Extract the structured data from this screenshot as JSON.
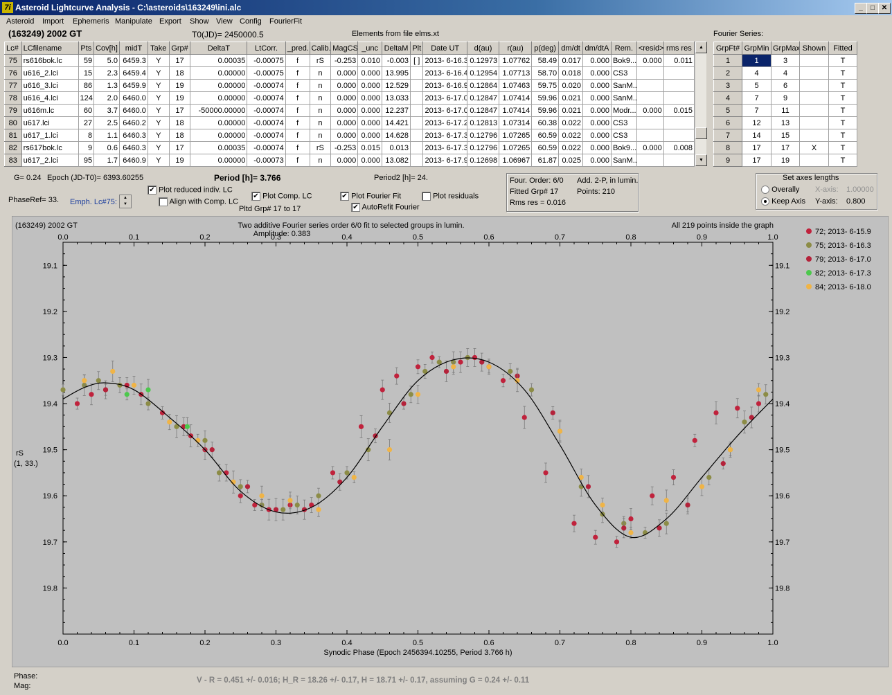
{
  "window": {
    "title": "Asteroid Lightcurve Analysis - C:\\asteroids\\163249\\ini.alc",
    "app_icon": "7i"
  },
  "menu": [
    "Asteroid",
    "Import",
    "Ephemeris",
    "Manipulate",
    "Export",
    "Show",
    "View",
    "Config",
    "FourierFit"
  ],
  "header": {
    "object": "(163249) 2002 GT",
    "t0": "T0(JD)= 2450000.5",
    "elements": "Elements from file elms.xt",
    "fourier_label": "Fourier Series:"
  },
  "lc_table": {
    "columns": [
      "Lc#",
      "LCfilename",
      "Pts",
      "Cov[h]",
      "midT",
      "Take",
      "Grp#",
      "DeltaT",
      "LtCorr.",
      "_pred.",
      "Calib.",
      "MagCS",
      "_unc",
      "DeltaM",
      "Plt",
      "Date UT",
      "d(au)",
      "r(au)",
      "p(deg)",
      "dm/dt",
      "dm/dtA",
      "Rem.",
      "<resid>",
      "rms res"
    ],
    "rows": [
      [
        "75",
        "rs616bok.lc",
        "59",
        "5.0",
        "6459.3",
        "Y",
        "17",
        "0.00035",
        "-0.00075",
        "f",
        "rS",
        "-0.253",
        "0.010",
        "-0.003",
        "[ ]",
        "2013- 6-16.3",
        "0.12973",
        "1.07762",
        "58.49",
        "0.017",
        "0.000",
        "Bok9...",
        "0.000",
        "0.011"
      ],
      [
        "76",
        "u616_2.lci",
        "15",
        "2.3",
        "6459.4",
        "Y",
        "18",
        "0.00000",
        "-0.00075",
        "f",
        "n",
        "0.000",
        "0.000",
        "13.995",
        "",
        "2013- 6-16.4",
        "0.12954",
        "1.07713",
        "58.70",
        "0.018",
        "0.000",
        "CS3",
        "",
        ""
      ],
      [
        "77",
        "u616_3.lci",
        "86",
        "1.3",
        "6459.9",
        "Y",
        "19",
        "0.00000",
        "-0.00074",
        "f",
        "n",
        "0.000",
        "0.000",
        "12.529",
        "",
        "2013- 6-16.9",
        "0.12864",
        "1.07463",
        "59.75",
        "0.020",
        "0.000",
        "SanM...",
        "",
        ""
      ],
      [
        "78",
        "u616_4.lci",
        "124",
        "2.0",
        "6460.0",
        "Y",
        "19",
        "0.00000",
        "-0.00074",
        "f",
        "n",
        "0.000",
        "0.000",
        "13.033",
        "",
        "2013- 6-17.0",
        "0.12847",
        "1.07414",
        "59.96",
        "0.021",
        "0.000",
        "SanM...",
        "",
        ""
      ],
      [
        "79",
        "u616m.lc",
        "60",
        "3.7",
        "6460.0",
        "Y",
        "17",
        "-50000.00000",
        "-0.00074",
        "f",
        "n",
        "0.000",
        "0.000",
        "12.237",
        "",
        "2013- 6-17.0",
        "0.12847",
        "1.07414",
        "59.96",
        "0.021",
        "0.000",
        "Modr...",
        "0.000",
        "0.015"
      ],
      [
        "80",
        "u617.lci",
        "27",
        "2.5",
        "6460.2",
        "Y",
        "18",
        "0.00000",
        "-0.00074",
        "f",
        "n",
        "0.000",
        "0.000",
        "14.421",
        "",
        "2013- 6-17.2",
        "0.12813",
        "1.07314",
        "60.38",
        "0.022",
        "0.000",
        "CS3",
        "",
        ""
      ],
      [
        "81",
        "u617_1.lci",
        "8",
        "1.1",
        "6460.3",
        "Y",
        "18",
        "0.00000",
        "-0.00074",
        "f",
        "n",
        "0.000",
        "0.000",
        "14.628",
        "",
        "2013- 6-17.3",
        "0.12796",
        "1.07265",
        "60.59",
        "0.022",
        "0.000",
        "CS3",
        "",
        ""
      ],
      [
        "82",
        "rs617bok.lc",
        "9",
        "0.6",
        "6460.3",
        "Y",
        "17",
        "0.00035",
        "-0.00074",
        "f",
        "rS",
        "-0.253",
        "0.015",
        "0.013",
        "",
        "2013- 6-17.3",
        "0.12796",
        "1.07265",
        "60.59",
        "0.022",
        "0.000",
        "Bok9...",
        "0.000",
        "0.008"
      ],
      [
        "83",
        "u617_2.lci",
        "95",
        "1.7",
        "6460.9",
        "Y",
        "19",
        "0.00000",
        "-0.00073",
        "f",
        "n",
        "0.000",
        "0.000",
        "13.082",
        "",
        "2013- 6-17.9",
        "0.12698",
        "1.06967",
        "61.87",
        "0.025",
        "0.000",
        "SanM...",
        "",
        ""
      ]
    ]
  },
  "fourier_table": {
    "columns": [
      "GrpFt#",
      "GrpMin",
      "GrpMax",
      "Shown",
      "Fitted"
    ],
    "rows": [
      [
        "1",
        "1",
        "3",
        "",
        "T"
      ],
      [
        "2",
        "4",
        "4",
        "",
        "T"
      ],
      [
        "3",
        "5",
        "6",
        "",
        "T"
      ],
      [
        "4",
        "7",
        "9",
        "",
        "T"
      ],
      [
        "5",
        "7",
        "11",
        "",
        "T"
      ],
      [
        "6",
        "12",
        "13",
        "",
        "T"
      ],
      [
        "7",
        "14",
        "15",
        "",
        "T"
      ],
      [
        "8",
        "17",
        "17",
        "X",
        "T"
      ],
      [
        "9",
        "17",
        "19",
        "",
        "T"
      ]
    ]
  },
  "controls": {
    "g": "G= 0.24",
    "epoch": "Epoch (JD-T0)= 6393.60255",
    "period": "Period [h]= 3.766",
    "period2": "Period2 [h]= 24.",
    "phaseref": "PhaseRef= 33.",
    "emph": "Emph. Lc#75:",
    "plot_reduced": "Plot reduced indiv. LC",
    "align": "Align with Comp. LC",
    "plot_comp": "Plot Comp. LC",
    "pltd_grp": "Pltd Grp#  17 to   17",
    "plot_fourier": "Plot Fourier Fit",
    "autorefit": "AutoRefit Fourier",
    "plot_resid": "Plot residuals",
    "info_order": "Four. Order:  6/0",
    "info_add": "Add. 2-P, in lumin.",
    "info_fitted": "Fitted Grp# 17",
    "info_points": "Points: 210",
    "info_rms": "Rms res     = 0.016",
    "axes_title": "Set axes lengths",
    "overally": "Overally",
    "keep_axis": "Keep Axis",
    "xaxis_label": "X-axis:",
    "xaxis_val": "1.00000",
    "yaxis_label": "Y-axis:",
    "yaxis_val": "0.800",
    "checks": {
      "plot_reduced": true,
      "align": false,
      "plot_comp": true,
      "plot_fourier": true,
      "autorefit": true,
      "plot_resid": false
    },
    "radio_selected": "keep_axis"
  },
  "plot": {
    "object": "(163249) 2002 GT",
    "title": "Two additive Fourier series order 6/0 fit to selected groups in lumin.",
    "amplitude": "Amplitude: 0.383",
    "inside": "All 219 points inside the graph",
    "ylabel1": "rS",
    "ylabel2": "(1, 33.)",
    "xlabel": "Synodic Phase (Epoch 2456394.10255, Period 3.766 h)",
    "legend": [
      {
        "label": "72; 2013- 6-15.9",
        "color": "#c0223c"
      },
      {
        "label": "75; 2013- 6-16.3",
        "color": "#8c8c46"
      },
      {
        "label": "79; 2013- 6-17.0",
        "color": "#b4223a"
      },
      {
        "label": "82; 2013- 6-17.3",
        "color": "#4cc84c"
      },
      {
        "label": "84; 2013- 6-18.0",
        "color": "#f0b446"
      }
    ]
  },
  "status": {
    "phase_label": "Phase:",
    "mag_label": "Mag:",
    "result": "V - R = 0.451 +/- 0.016; H_R = 18.26 +/- 0.17, H = 18.71 +/- 0.17, assuming G = 0.24 +/- 0.11"
  },
  "chart_data": {
    "type": "scatter",
    "title": "Two additive Fourier series order 6/0 fit to selected groups in lumin.",
    "xlabel": "Synodic Phase (Epoch 2456394.10255, Period 3.766 h)",
    "ylabel": "rS",
    "xlim": [
      0.0,
      1.0
    ],
    "ylim": [
      19.9,
      19.05
    ],
    "x_ticks": [
      "0.0",
      "0.1",
      "0.2",
      "0.3",
      "0.4",
      "0.5",
      "0.6",
      "0.7",
      "0.8",
      "0.9",
      "1.0"
    ],
    "y_ticks": [
      "19.1",
      "19.2",
      "19.3",
      "19.4",
      "19.5",
      "19.6",
      "19.7",
      "19.8"
    ],
    "grid": false,
    "legend_position": "right",
    "fit_curve": {
      "x": [
        0.0,
        0.03,
        0.06,
        0.1,
        0.15,
        0.2,
        0.25,
        0.3,
        0.35,
        0.4,
        0.45,
        0.5,
        0.55,
        0.6,
        0.65,
        0.7,
        0.75,
        0.8,
        0.85,
        0.9,
        0.95,
        1.0
      ],
      "y": [
        19.39,
        19.365,
        19.355,
        19.37,
        19.43,
        19.5,
        19.59,
        19.635,
        19.625,
        19.56,
        19.45,
        19.35,
        19.305,
        19.31,
        19.37,
        19.49,
        19.62,
        19.69,
        19.65,
        19.56,
        19.47,
        19.39
      ]
    },
    "series": [
      {
        "name": "72; 2013- 6-15.9",
        "x": [
          0.02,
          0.04,
          0.06,
          0.09,
          0.14,
          0.18,
          0.2,
          0.23,
          0.25,
          0.27,
          0.29,
          0.32,
          0.35,
          0.38,
          0.42,
          0.45,
          0.47,
          0.5,
          0.52,
          0.56,
          0.58,
          0.6,
          0.62,
          0.65,
          0.68,
          0.72,
          0.75,
          0.78,
          0.8,
          0.83,
          0.86,
          0.89,
          0.92,
          0.95,
          0.98
        ],
        "y": [
          19.4,
          19.38,
          19.37,
          19.36,
          19.42,
          19.47,
          19.5,
          19.55,
          19.6,
          19.62,
          19.63,
          19.62,
          19.62,
          19.55,
          19.45,
          19.37,
          19.34,
          19.32,
          19.3,
          19.31,
          19.3,
          19.32,
          19.35,
          19.43,
          19.55,
          19.66,
          19.69,
          19.7,
          19.65,
          19.6,
          19.56,
          19.48,
          19.42,
          19.41,
          19.4
        ]
      },
      {
        "name": "75; 2013- 6-16.3",
        "x": [
          0.0,
          0.03,
          0.05,
          0.08,
          0.12,
          0.16,
          0.2,
          0.22,
          0.25,
          0.28,
          0.31,
          0.33,
          0.36,
          0.4,
          0.43,
          0.46,
          0.49,
          0.51,
          0.53,
          0.55,
          0.57,
          0.63,
          0.66,
          0.7,
          0.73,
          0.76,
          0.79,
          0.82,
          0.85,
          0.88,
          0.91,
          0.94,
          0.96,
          0.99
        ],
        "y": [
          19.37,
          19.36,
          19.35,
          19.36,
          19.4,
          19.45,
          19.48,
          19.55,
          19.58,
          19.62,
          19.63,
          19.62,
          19.6,
          19.55,
          19.5,
          19.42,
          19.38,
          19.33,
          19.31,
          19.31,
          19.3,
          19.33,
          19.37,
          19.46,
          19.58,
          19.64,
          19.66,
          19.68,
          19.66,
          19.62,
          19.56,
          19.5,
          19.44,
          19.38
        ]
      },
      {
        "name": "79; 2013- 6-17.0",
        "x": [
          0.06,
          0.11,
          0.17,
          0.21,
          0.26,
          0.3,
          0.34,
          0.39,
          0.44,
          0.48,
          0.54,
          0.59,
          0.64,
          0.69,
          0.74,
          0.79,
          0.84,
          0.88,
          0.93,
          0.97
        ],
        "y": [
          19.37,
          19.38,
          19.45,
          19.5,
          19.58,
          19.63,
          19.63,
          19.57,
          19.47,
          19.4,
          19.33,
          19.31,
          19.34,
          19.42,
          19.58,
          19.67,
          19.67,
          19.62,
          19.53,
          19.43
        ]
      },
      {
        "name": "82; 2013- 6-17.3",
        "x": [
          0.09,
          0.12,
          0.175
        ],
        "y": [
          19.38,
          19.37,
          19.45
        ]
      },
      {
        "name": "84; 2013- 6-18.0",
        "x": [
          0.03,
          0.07,
          0.1,
          0.15,
          0.19,
          0.24,
          0.28,
          0.32,
          0.36,
          0.41,
          0.46,
          0.5,
          0.55,
          0.6,
          0.64,
          0.7,
          0.73,
          0.76,
          0.8,
          0.85,
          0.9,
          0.94,
          0.98
        ],
        "y": [
          19.35,
          19.33,
          19.36,
          19.44,
          19.48,
          19.57,
          19.6,
          19.61,
          19.63,
          19.56,
          19.5,
          19.38,
          19.32,
          19.32,
          19.35,
          19.46,
          19.56,
          19.62,
          19.68,
          19.61,
          19.58,
          19.5,
          19.37
        ]
      }
    ]
  }
}
